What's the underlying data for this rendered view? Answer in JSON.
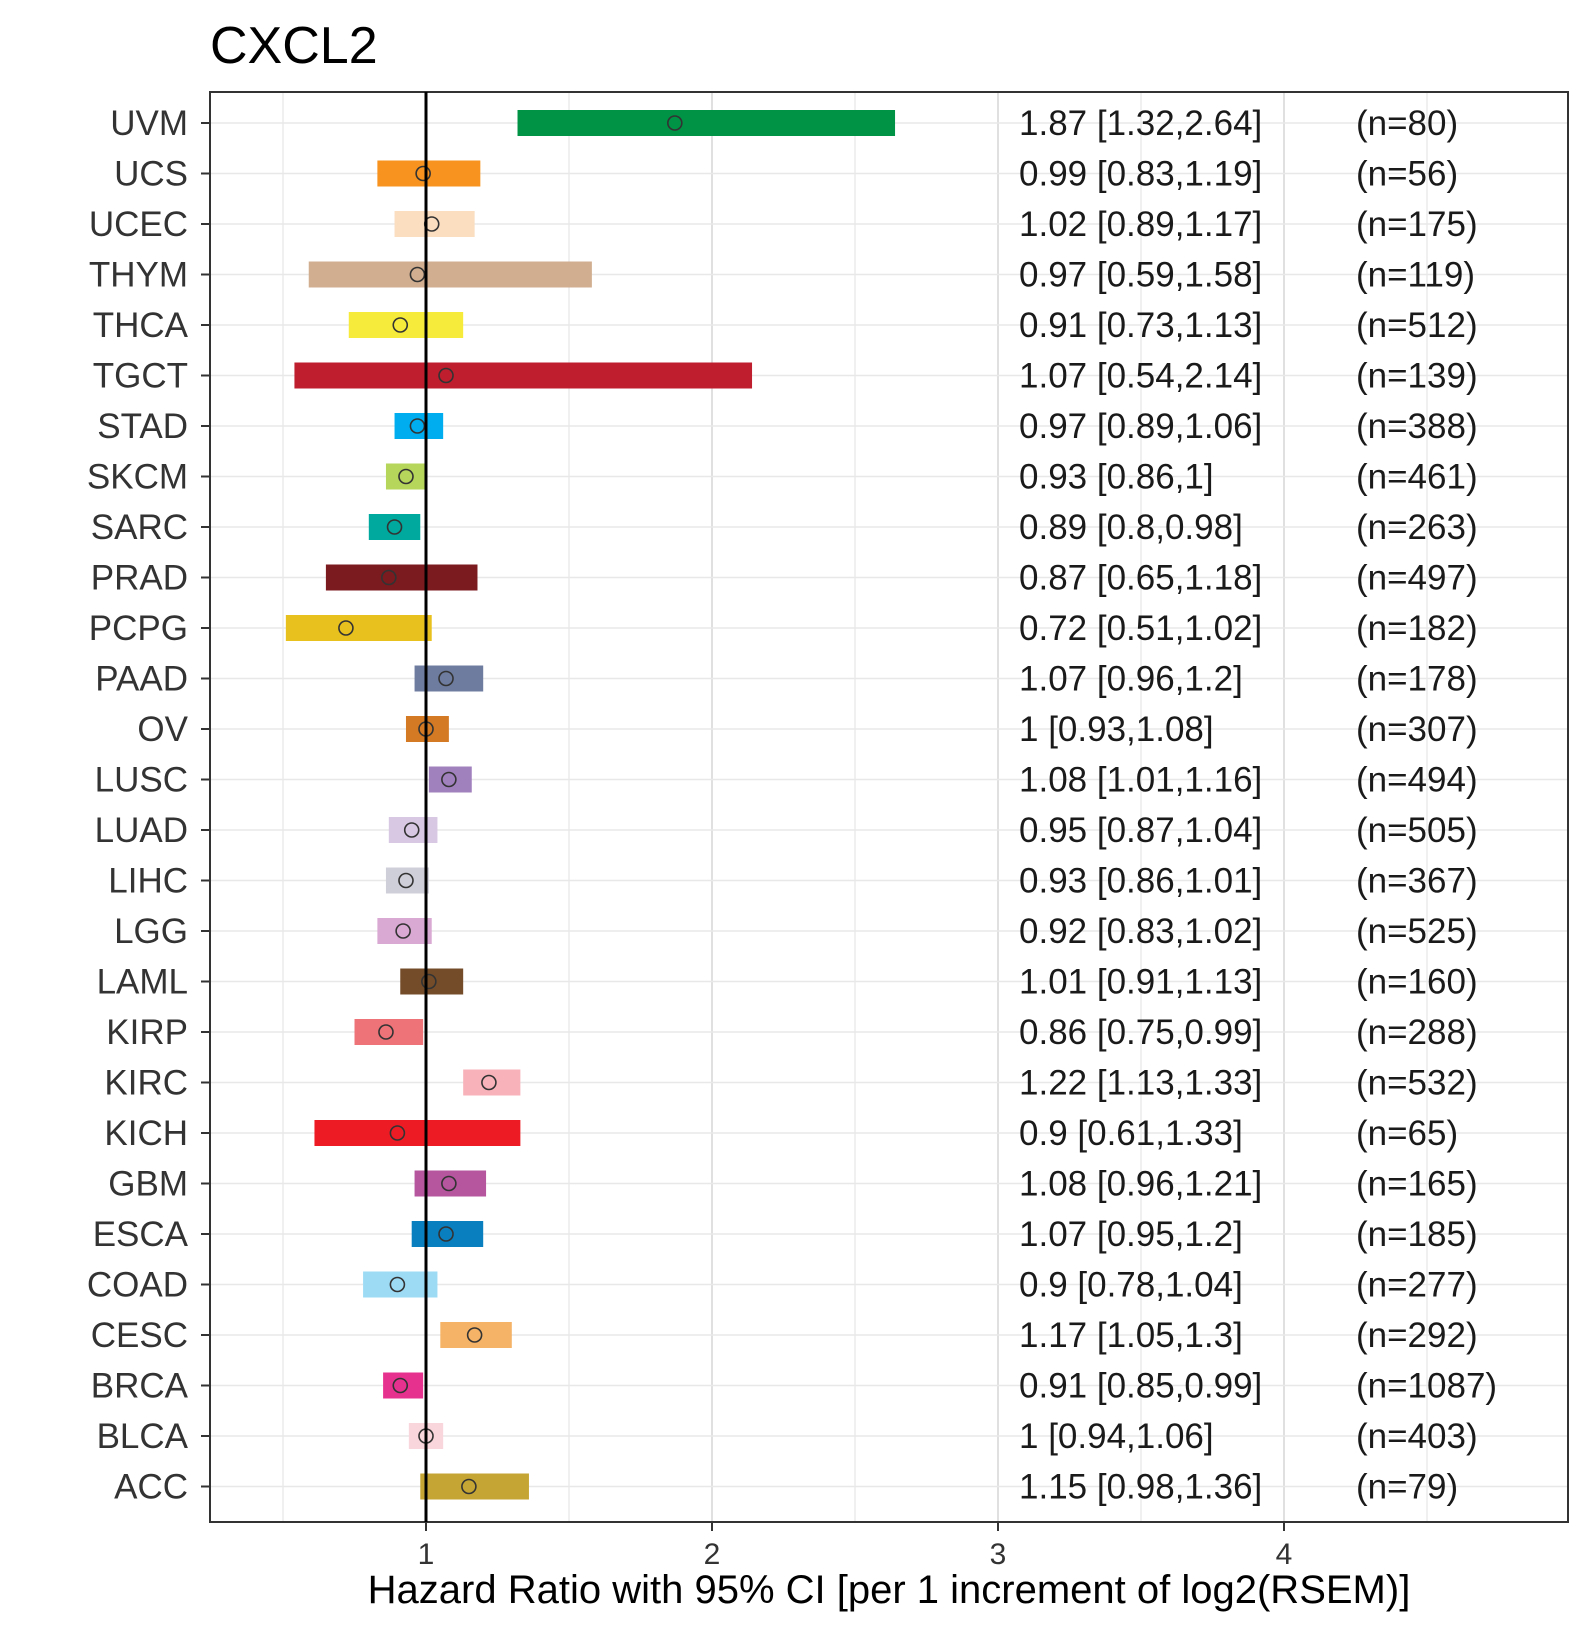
{
  "chart_data": {
    "type": "forest",
    "title": "CXCL2",
    "xlabel": "Hazard Ratio with 95% CI [per 1 increment of log2(RSEM)]",
    "ylabel": "",
    "xlim": [
      0.3,
      4.9
    ],
    "xticks": [
      1,
      2,
      3,
      4
    ],
    "xtick_labels": [
      "1",
      "2",
      "3",
      "4"
    ],
    "reference_line": 1,
    "grid": true,
    "rows": [
      {
        "label": "UVM",
        "hr": 1.87,
        "lo": 1.32,
        "hi": 2.64,
        "text": "1.87 [1.32,2.64]",
        "n": "(n=80)",
        "color": "#009245"
      },
      {
        "label": "UCS",
        "hr": 0.99,
        "lo": 0.83,
        "hi": 1.19,
        "text": "0.99 [0.83,1.19]",
        "n": "(n=56)",
        "color": "#F7931E"
      },
      {
        "label": "UCEC",
        "hr": 1.02,
        "lo": 0.89,
        "hi": 1.17,
        "text": "1.02 [0.89,1.17]",
        "n": "(n=175)",
        "color": "#FBDDC0"
      },
      {
        "label": "THYM",
        "hr": 0.97,
        "lo": 0.59,
        "hi": 1.58,
        "text": "0.97 [0.59,1.58]",
        "n": "(n=119)",
        "color": "#D1AE90"
      },
      {
        "label": "THCA",
        "hr": 0.91,
        "lo": 0.73,
        "hi": 1.13,
        "text": "0.91 [0.73,1.13]",
        "n": "(n=512)",
        "color": "#F6EB3A"
      },
      {
        "label": "TGCT",
        "hr": 1.07,
        "lo": 0.54,
        "hi": 2.14,
        "text": "1.07 [0.54,2.14]",
        "n": "(n=139)",
        "color": "#BE1E2D"
      },
      {
        "label": "STAD",
        "hr": 0.97,
        "lo": 0.89,
        "hi": 1.06,
        "text": "0.97 [0.89,1.06]",
        "n": "(n=388)",
        "color": "#00AEEF"
      },
      {
        "label": "SKCM",
        "hr": 0.93,
        "lo": 0.86,
        "hi": 1,
        "text": "0.93 [0.86,1]",
        "n": "(n=461)",
        "color": "#B5D55B"
      },
      {
        "label": "SARC",
        "hr": 0.89,
        "lo": 0.8,
        "hi": 0.98,
        "text": "0.89 [0.8,0.98]",
        "n": "(n=263)",
        "color": "#00A99D"
      },
      {
        "label": "PRAD",
        "hr": 0.87,
        "lo": 0.65,
        "hi": 1.18,
        "text": "0.87 [0.65,1.18]",
        "n": "(n=497)",
        "color": "#7B1A1F"
      },
      {
        "label": "PCPG",
        "hr": 0.72,
        "lo": 0.51,
        "hi": 1.02,
        "text": "0.72 [0.51,1.02]",
        "n": "(n=182)",
        "color": "#E8C11F"
      },
      {
        "label": "PAAD",
        "hr": 1.07,
        "lo": 0.96,
        "hi": 1.2,
        "text": "1.07 [0.96,1.2]",
        "n": "(n=178)",
        "color": "#6E7CA0"
      },
      {
        "label": "OV",
        "hr": 1,
        "lo": 0.93,
        "hi": 1.08,
        "text": "1 [0.93,1.08]",
        "n": "(n=307)",
        "color": "#D57A24"
      },
      {
        "label": "LUSC",
        "hr": 1.08,
        "lo": 1.01,
        "hi": 1.16,
        "text": "1.08 [1.01,1.16]",
        "n": "(n=494)",
        "color": "#A180BE"
      },
      {
        "label": "LUAD",
        "hr": 0.95,
        "lo": 0.87,
        "hi": 1.04,
        "text": "0.95 [0.87,1.04]",
        "n": "(n=505)",
        "color": "#D9C8E3"
      },
      {
        "label": "LIHC",
        "hr": 0.93,
        "lo": 0.86,
        "hi": 1.01,
        "text": "0.93 [0.86,1.01]",
        "n": "(n=367)",
        "color": "#CFCFD9"
      },
      {
        "label": "LGG",
        "hr": 0.92,
        "lo": 0.83,
        "hi": 1.02,
        "text": "0.92 [0.83,1.02]",
        "n": "(n=525)",
        "color": "#D9A9D3"
      },
      {
        "label": "LAML",
        "hr": 1.01,
        "lo": 0.91,
        "hi": 1.13,
        "text": "1.01 [0.91,1.13]",
        "n": "(n=160)",
        "color": "#754C29"
      },
      {
        "label": "KIRP",
        "hr": 0.86,
        "lo": 0.75,
        "hi": 0.99,
        "text": "0.86 [0.75,0.99]",
        "n": "(n=288)",
        "color": "#EE7378"
      },
      {
        "label": "KIRC",
        "hr": 1.22,
        "lo": 1.13,
        "hi": 1.33,
        "text": "1.22 [1.13,1.33]",
        "n": "(n=532)",
        "color": "#F8B2BA"
      },
      {
        "label": "KICH",
        "hr": 0.9,
        "lo": 0.61,
        "hi": 1.33,
        "text": "0.9 [0.61,1.33]",
        "n": "(n=65)",
        "color": "#ED1C24"
      },
      {
        "label": "GBM",
        "hr": 1.08,
        "lo": 0.96,
        "hi": 1.21,
        "text": "1.08 [0.96,1.21]",
        "n": "(n=165)",
        "color": "#B5569E"
      },
      {
        "label": "ESCA",
        "hr": 1.07,
        "lo": 0.95,
        "hi": 1.2,
        "text": "1.07 [0.95,1.2]",
        "n": "(n=185)",
        "color": "#0A7FBF"
      },
      {
        "label": "COAD",
        "hr": 0.9,
        "lo": 0.78,
        "hi": 1.04,
        "text": "0.9 [0.78,1.04]",
        "n": "(n=277)",
        "color": "#9DDBF5"
      },
      {
        "label": "CESC",
        "hr": 1.17,
        "lo": 1.05,
        "hi": 1.3,
        "text": "1.17 [1.05,1.3]",
        "n": "(n=292)",
        "color": "#F5B367"
      },
      {
        "label": "BRCA",
        "hr": 0.91,
        "lo": 0.85,
        "hi": 0.99,
        "text": "0.91 [0.85,0.99]",
        "n": "(n=1087)",
        "color": "#E7318E"
      },
      {
        "label": "BLCA",
        "hr": 1,
        "lo": 0.94,
        "hi": 1.06,
        "text": "1 [0.94,1.06]",
        "n": "(n=403)",
        "color": "#F9D5DC"
      },
      {
        "label": "ACC",
        "hr": 1.15,
        "lo": 0.98,
        "hi": 1.36,
        "text": "1.15 [0.98,1.36]",
        "n": "(n=79)",
        "color": "#C5A634"
      }
    ]
  }
}
